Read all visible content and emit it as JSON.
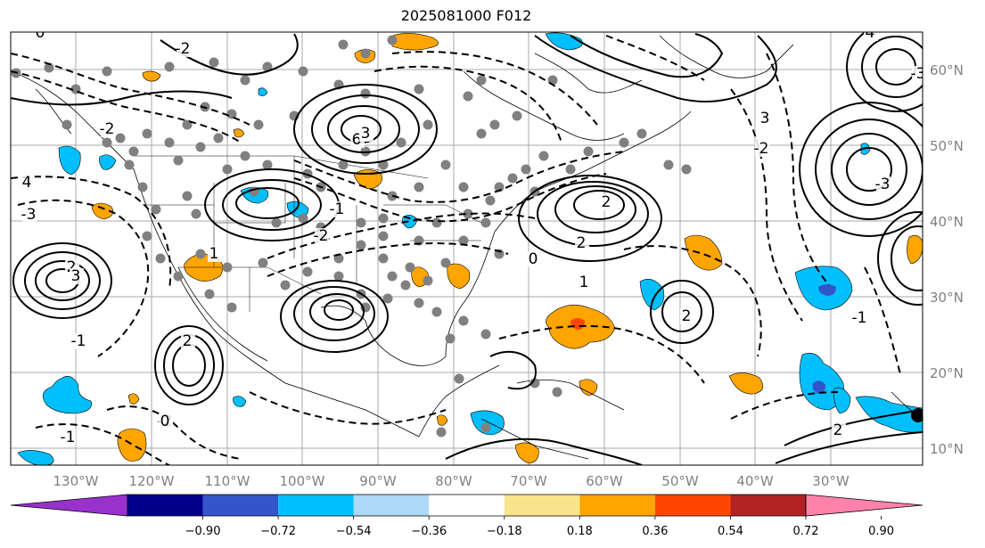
{
  "title": "2025081000 F012",
  "lon_labels": [
    "130°W",
    "120°W",
    "110°W",
    "100°W",
    "90°W",
    "80°W",
    "70°W",
    "60°W",
    "50°W",
    "40°W",
    "30°W"
  ],
  "lat_labels": [
    "60°N",
    "50°N",
    "40°N",
    "30°N",
    "20°N",
    "10°N"
  ],
  "colorbar": {
    "ticks": [
      "−0.90",
      "−0.72",
      "−0.54",
      "−0.36",
      "−0.18",
      "0.18",
      "0.36",
      "0.54",
      "0.72",
      "0.90"
    ],
    "colors": [
      "#9932cc",
      "#00008b",
      "#3355cc",
      "#00bfff",
      "#add8f6",
      "#ffffff",
      "#f8e48a",
      "#ffa500",
      "#ff4500",
      "#b22222",
      "#ff82ab"
    ]
  },
  "contour_labels": [
    "0",
    "-2",
    "-2",
    "2",
    "3",
    "-3",
    "4",
    "6",
    "-1",
    "-2",
    "3",
    "2",
    "2",
    "1",
    "0",
    "2",
    "-1",
    "-2",
    "0",
    "-1",
    "1",
    "2",
    "3",
    "-2",
    "-3",
    "4",
    "-3",
    "-1",
    "2"
  ],
  "colors": {
    "positive": "#ffa500",
    "negative": "#00bfff",
    "grid": "#a9a9a9"
  }
}
